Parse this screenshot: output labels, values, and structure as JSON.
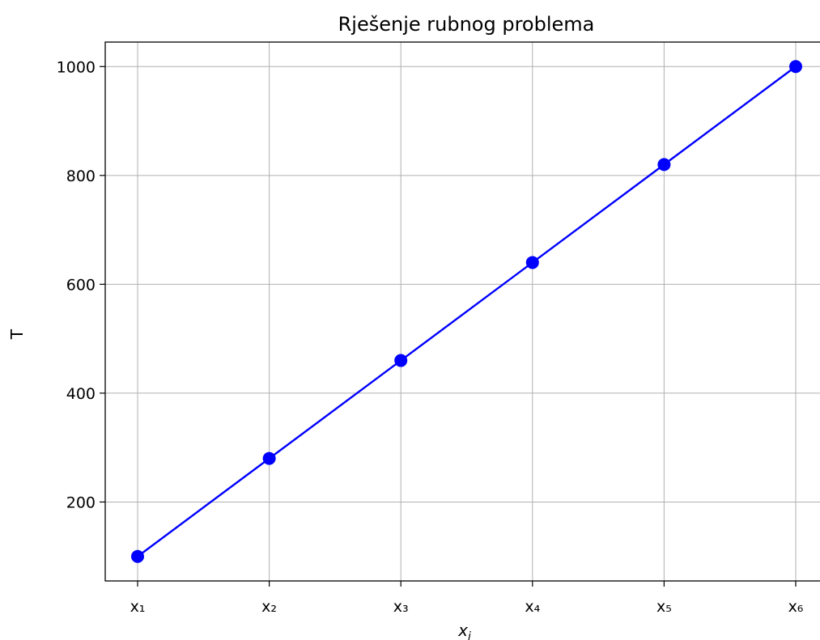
{
  "chart_data": {
    "type": "line",
    "title": "Rješenje rubnog problema",
    "xlabel": "x",
    "xlabel_subscript": "i",
    "ylabel": "T",
    "categories": [
      "x₁",
      "x₂",
      "x₃",
      "x₄",
      "x₅",
      "x₆"
    ],
    "series": [
      {
        "values": [
          100,
          280,
          460,
          640,
          820,
          1000
        ],
        "color": "#0000ff",
        "marker": "circle"
      }
    ],
    "ylim": [
      55,
      1045
    ],
    "yticks": [
      200,
      400,
      600,
      800,
      1000
    ],
    "grid": true,
    "legend": "none"
  }
}
